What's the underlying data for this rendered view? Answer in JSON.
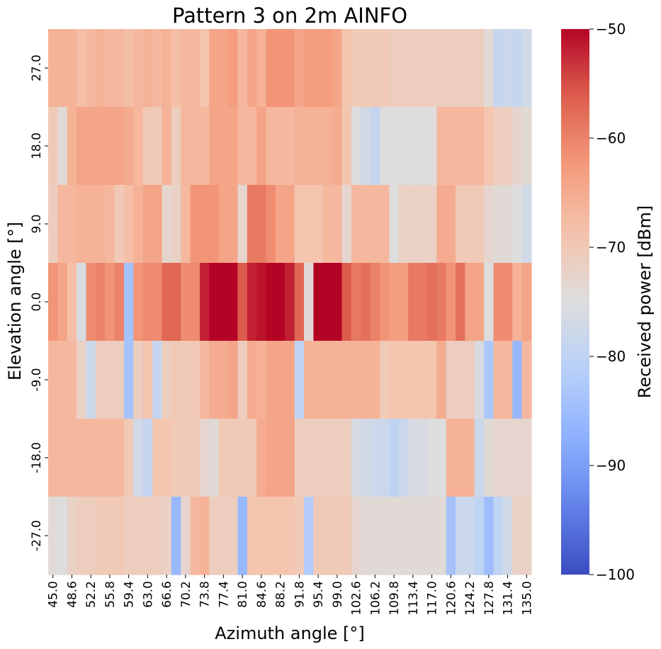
{
  "chart_data": {
    "type": "heatmap",
    "title": "Pattern 3 on 2m AINFO",
    "xlabel": "Azimuth angle [°]",
    "ylabel": "Elevation angle [°]",
    "colorbar_label": "Received power [dBm]",
    "colormap": "coolwarm",
    "vmin": -100,
    "vmax": -50,
    "colorbar_ticks": [
      "−50",
      "−60",
      "−70",
      "−80",
      "−90",
      "−100"
    ],
    "colorbar_tick_values": [
      -50,
      -60,
      -70,
      -80,
      -90,
      -100
    ],
    "x_values": [
      45.0,
      46.8,
      48.6,
      50.4,
      52.2,
      54.0,
      55.8,
      57.6,
      59.4,
      61.2,
      63.0,
      64.8,
      66.6,
      68.4,
      70.2,
      72.0,
      73.8,
      75.6,
      77.4,
      79.2,
      81.0,
      82.8,
      84.6,
      86.4,
      88.2,
      90.0,
      91.8,
      93.6,
      95.4,
      97.2,
      99.0,
      100.8,
      102.6,
      104.4,
      106.2,
      108.0,
      109.8,
      111.6,
      113.4,
      115.2,
      117.0,
      118.8,
      120.6,
      122.4,
      124.2,
      126.0,
      127.8,
      129.6,
      131.4,
      133.2,
      135.0
    ],
    "x_tick_labels": [
      "45.0",
      "48.6",
      "52.2",
      "55.8",
      "59.4",
      "63.0",
      "66.6",
      "70.2",
      "73.8",
      "77.4",
      "81.0",
      "84.6",
      "88.2",
      "91.8",
      "95.4",
      "99.0",
      "102.6",
      "106.2",
      "109.8",
      "113.4",
      "117.0",
      "120.6",
      "124.2",
      "127.8",
      "131.4",
      "135.0"
    ],
    "y_values": [
      27.0,
      18.0,
      9.0,
      0.0,
      -9.0,
      -18.0,
      -27.0
    ],
    "y_tick_labels": [
      "27.0",
      "18.0",
      "9.0",
      "0.0",
      "-9.0",
      "-18.0",
      "-27.0"
    ],
    "z": [
      [
        -66,
        -66,
        -66,
        -68,
        -67,
        -66,
        -67,
        -67,
        -68,
        -67,
        -66,
        -67,
        -66,
        -68,
        -67,
        -67,
        -69,
        -64,
        -64,
        -63,
        -67,
        -64,
        -66,
        -62,
        -62,
        -62,
        -64,
        -63,
        -63,
        -63,
        -64,
        -69,
        -70,
        -70,
        -70,
        -70,
        -71,
        -71,
        -71,
        -71,
        -71,
        -71,
        -71,
        -71,
        -71,
        -71,
        -74,
        -79,
        -78,
        -79,
        -77
      ],
      [
        -70,
        -74,
        -66,
        -64,
        -64,
        -64,
        -64,
        -64,
        -65,
        -67,
        -70,
        -70,
        -66,
        -71,
        -67,
        -67,
        -67,
        -64,
        -64,
        -64,
        -67,
        -67,
        -64,
        -67,
        -67,
        -67,
        -66,
        -66,
        -66,
        -66,
        -65,
        -69,
        -75,
        -77,
        -79,
        -75,
        -75,
        -75,
        -75,
        -75,
        -75,
        -67,
        -67,
        -67,
        -67,
        -67,
        -69,
        -71,
        -71,
        -73,
        -74
      ],
      [
        -71,
        -67,
        -67,
        -66,
        -66,
        -66,
        -67,
        -70,
        -68,
        -66,
        -64,
        -64,
        -73,
        -72,
        -67,
        -62,
        -62,
        -62,
        -64,
        -64,
        -73,
        -59,
        -59,
        -61,
        -64,
        -64,
        -69,
        -69,
        -69,
        -67,
        -67,
        -73,
        -67,
        -67,
        -67,
        -67,
        -75,
        -72,
        -72,
        -72,
        -72,
        -65,
        -65,
        -70,
        -70,
        -70,
        -73,
        -74,
        -74,
        -75,
        -77
      ],
      [
        -62,
        -64,
        -68,
        -76,
        -61,
        -60,
        -62,
        -60,
        -84,
        -62,
        -61,
        -61,
        -57,
        -57,
        -61,
        -61,
        -52,
        -50,
        -50,
        -50,
        -56,
        -52,
        -51,
        -50,
        -50,
        -52,
        -57,
        -74,
        -50,
        -50,
        -50,
        -56,
        -59,
        -58,
        -60,
        -62,
        -63,
        -63,
        -59,
        -59,
        -58,
        -59,
        -62,
        -58,
        -64,
        -64,
        -75,
        -61,
        -61,
        -66,
        -64
      ],
      [
        -67,
        -67,
        -67,
        -72,
        -78,
        -71,
        -71,
        -71,
        -84,
        -71,
        -69,
        -79,
        -71,
        -70,
        -70,
        -70,
        -67,
        -65,
        -65,
        -64,
        -71,
        -65,
        -66,
        -64,
        -64,
        -64,
        -80,
        -66,
        -66,
        -66,
        -66,
        -66,
        -66,
        -66,
        -66,
        -70,
        -69,
        -69,
        -69,
        -69,
        -69,
        -65,
        -71,
        -71,
        -71,
        -76,
        -83,
        -67,
        -67,
        -86,
        -67
      ],
      [
        -67,
        -67,
        -67,
        -67,
        -67,
        -67,
        -67,
        -67,
        -70,
        -77,
        -79,
        -69,
        -69,
        -70,
        -70,
        -70,
        -73,
        -74,
        -70,
        -70,
        -70,
        -70,
        -65,
        -64,
        -64,
        -64,
        -71,
        -71,
        -71,
        -71,
        -71,
        -71,
        -76,
        -77,
        -78,
        -78,
        -80,
        -78,
        -76,
        -76,
        -75,
        -75,
        -66,
        -66,
        -66,
        -78,
        -74,
        -73,
        -73,
        -73,
        -73
      ],
      [
        -74,
        -75,
        -72,
        -71,
        -71,
        -70,
        -70,
        -70,
        -71,
        -71,
        -71,
        -71,
        -72,
        -86,
        -73,
        -67,
        -66,
        -71,
        -71,
        -71,
        -86,
        -69,
        -69,
        -69,
        -69,
        -69,
        -70,
        -82,
        -70,
        -70,
        -70,
        -70,
        -73,
        -74,
        -74,
        -74,
        -74,
        -74,
        -74,
        -74,
        -74,
        -74,
        -84,
        -78,
        -78,
        -80,
        -85,
        -80,
        -77,
        -72,
        -72
      ]
    ]
  }
}
